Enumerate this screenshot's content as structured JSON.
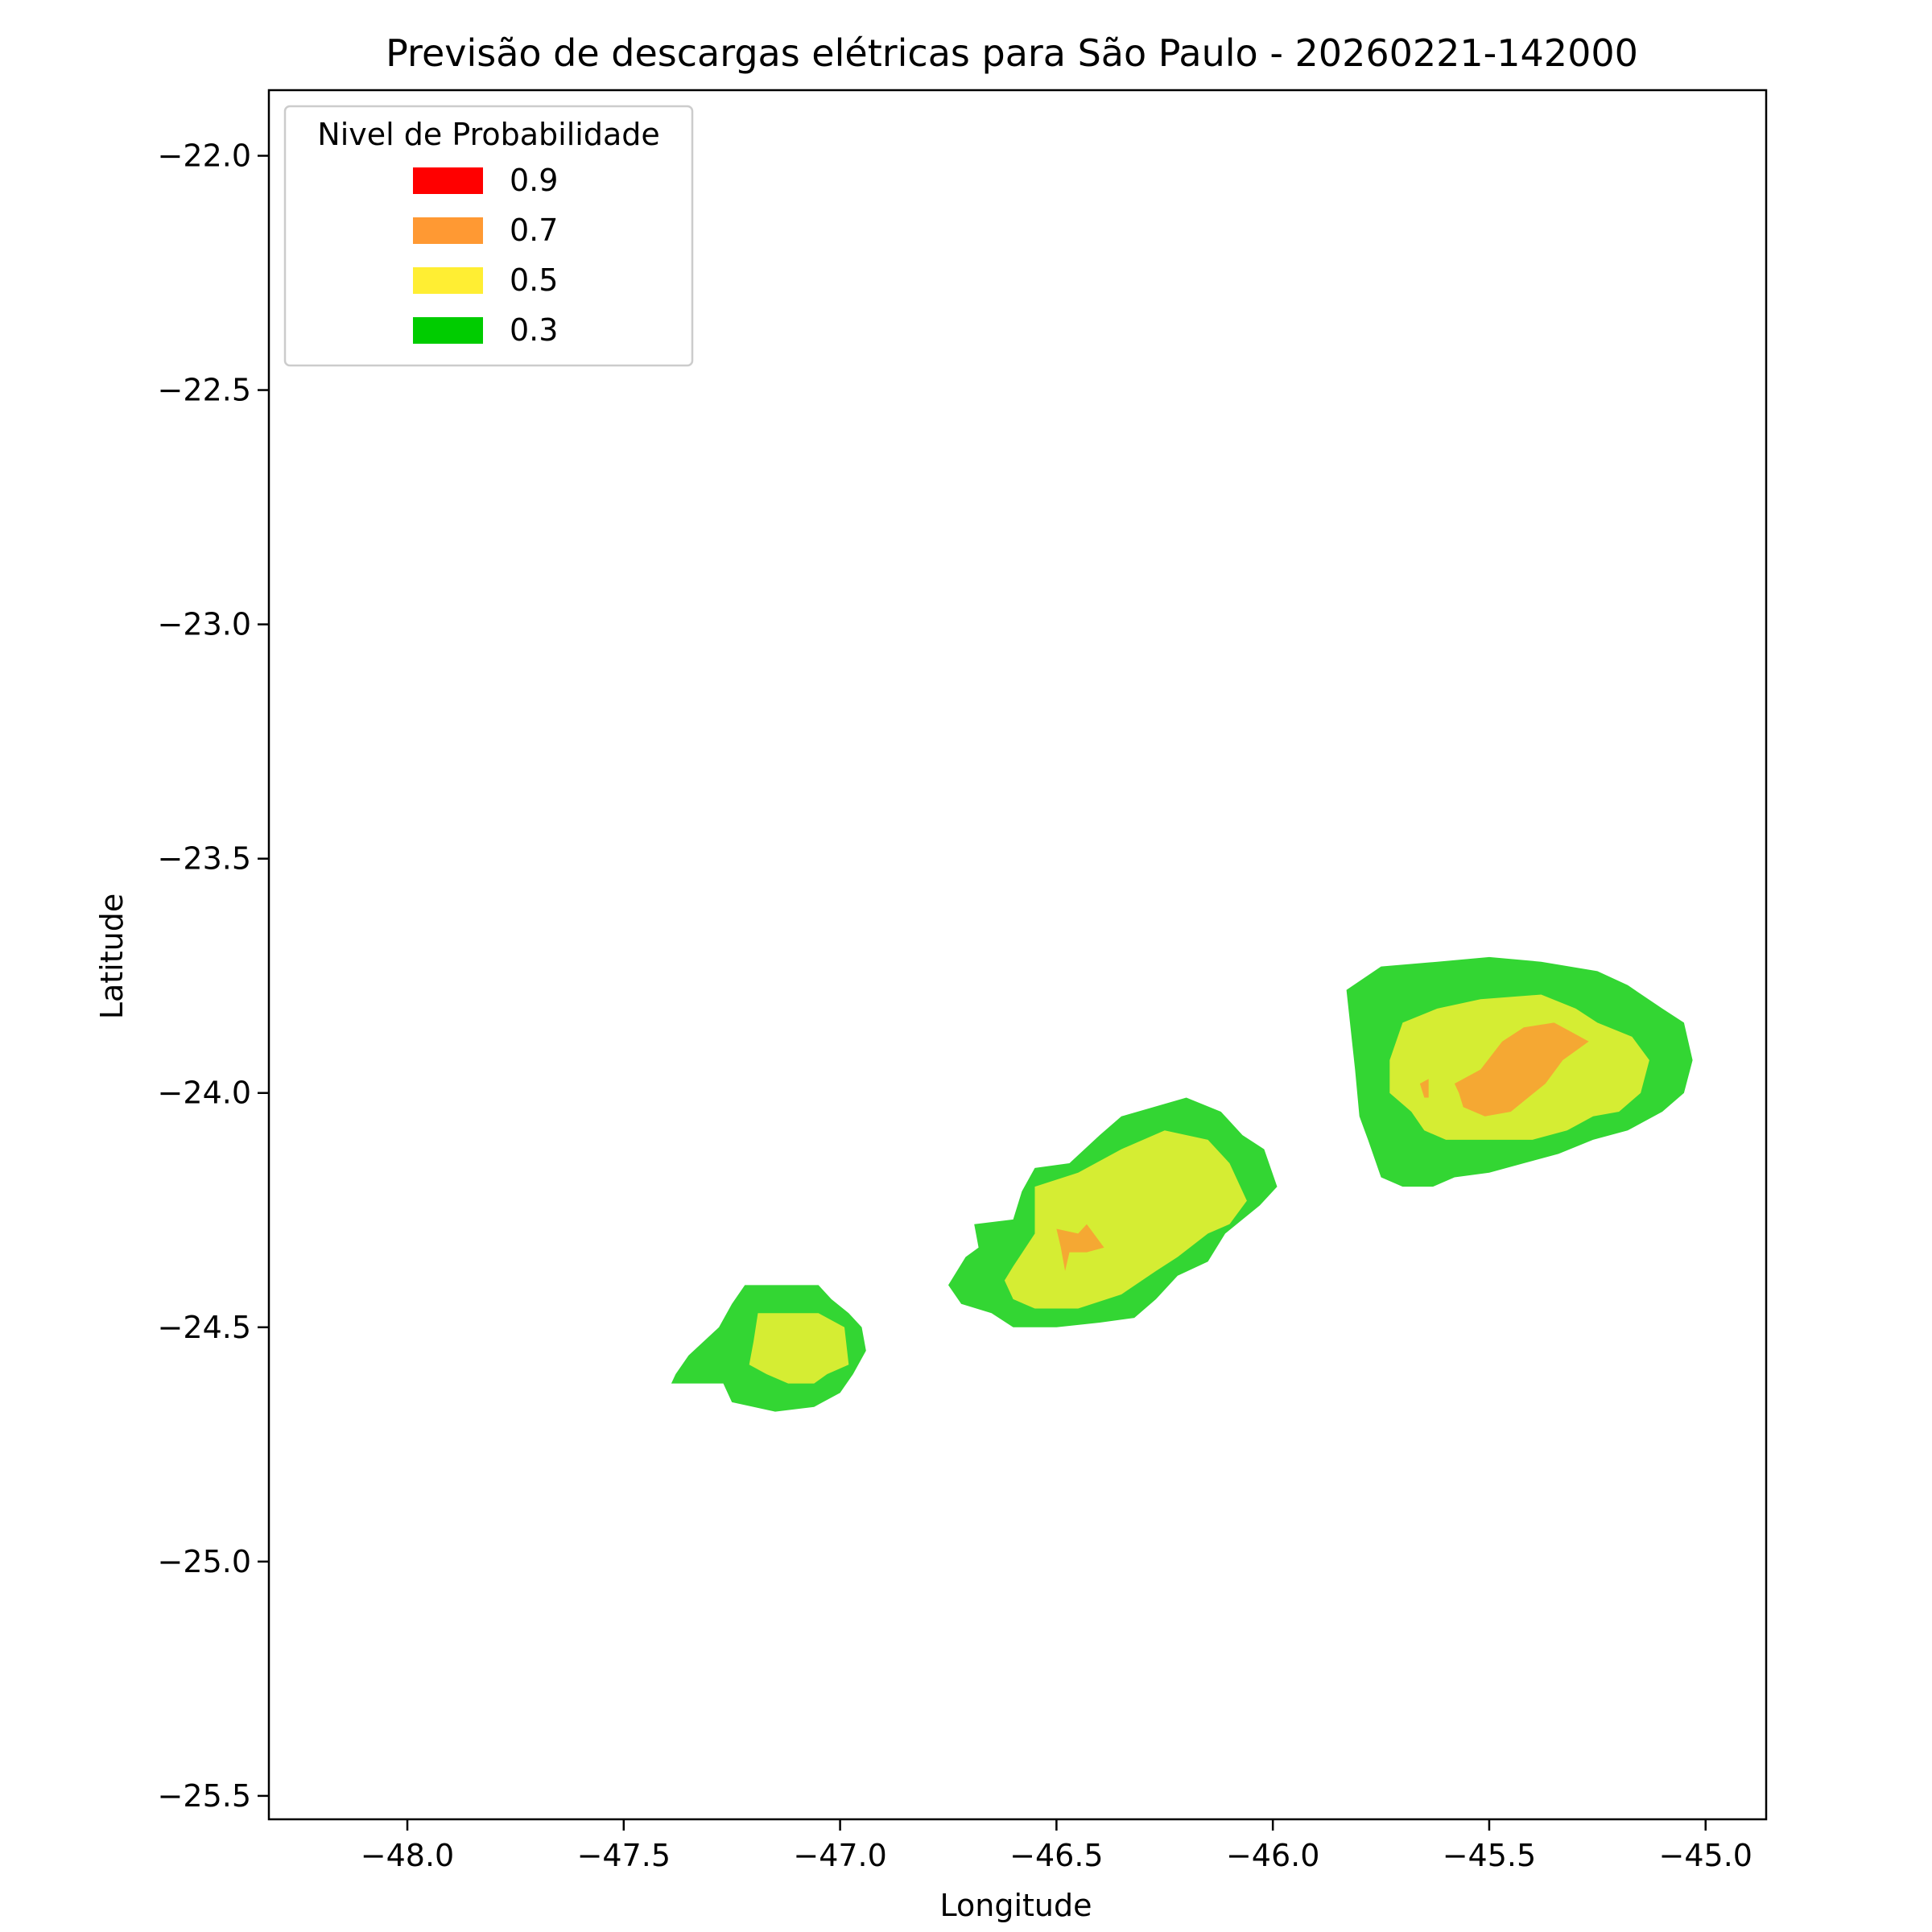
{
  "chart_data": {
    "type": "heatmap",
    "title": "Previsão de descargas elétricas para São Paulo - 20260221-142000",
    "xlabel": "Longitude",
    "ylabel": "Latitude",
    "xlim": [
      -48.32,
      -44.86
    ],
    "ylim": [
      -25.55,
      -21.86
    ],
    "xticks": [
      -48.0,
      -47.5,
      -47.0,
      -46.5,
      -46.0,
      -45.5,
      -45.0
    ],
    "xtick_labels": [
      "−48.0",
      "−47.5",
      "−47.0",
      "−46.5",
      "−46.0",
      "−45.5",
      "−45.0"
    ],
    "yticks": [
      -22.0,
      -22.5,
      -23.0,
      -23.5,
      -24.0,
      -24.5,
      -25.0,
      -25.5
    ],
    "ytick_labels": [
      "−22.0",
      "−22.5",
      "−23.0",
      "−23.5",
      "−24.0",
      "−24.5",
      "−25.0",
      "−25.5"
    ],
    "grid": false,
    "legend": {
      "title": "Nivel de Probabilidade",
      "placement": "top-left",
      "entries": [
        {
          "label": "0.9",
          "color": "#ff0000"
        },
        {
          "label": "0.7",
          "color": "#ff9933"
        },
        {
          "label": "0.5",
          "color": "#ffee33"
        },
        {
          "label": "0.3",
          "color": "#00cc00"
        }
      ]
    },
    "regions": [
      {
        "level": 0.3,
        "color": "#33d633",
        "points": [
          [
            -47.38,
            -24.6
          ],
          [
            -47.35,
            -24.56
          ],
          [
            -47.28,
            -24.5
          ],
          [
            -47.25,
            -24.45
          ],
          [
            -47.22,
            -24.41
          ],
          [
            -47.05,
            -24.41
          ],
          [
            -47.02,
            -24.44
          ],
          [
            -46.98,
            -24.47
          ],
          [
            -46.95,
            -24.5
          ],
          [
            -46.94,
            -24.55
          ],
          [
            -46.97,
            -24.6
          ],
          [
            -47.0,
            -24.64
          ],
          [
            -47.06,
            -24.67
          ],
          [
            -47.15,
            -24.68
          ],
          [
            -47.25,
            -24.66
          ],
          [
            -47.27,
            -24.62
          ],
          [
            -47.39,
            -24.62
          ]
        ]
      },
      {
        "level": 0.5,
        "color": "#d5ed33",
        "points": [
          [
            -47.2,
            -24.53
          ],
          [
            -47.19,
            -24.47
          ],
          [
            -47.05,
            -24.47
          ],
          [
            -46.99,
            -24.5
          ],
          [
            -46.98,
            -24.58
          ],
          [
            -47.03,
            -24.6
          ],
          [
            -47.06,
            -24.62
          ],
          [
            -47.12,
            -24.62
          ],
          [
            -47.17,
            -24.6
          ],
          [
            -47.21,
            -24.58
          ]
        ]
      },
      {
        "level": 0.3,
        "color": "#33d633",
        "points": [
          [
            -46.75,
            -24.41
          ],
          [
            -46.71,
            -24.35
          ],
          [
            -46.68,
            -24.33
          ],
          [
            -46.69,
            -24.28
          ],
          [
            -46.6,
            -24.27
          ],
          [
            -46.58,
            -24.21
          ],
          [
            -46.55,
            -24.16
          ],
          [
            -46.47,
            -24.15
          ],
          [
            -46.4,
            -24.09
          ],
          [
            -46.35,
            -24.05
          ],
          [
            -46.2,
            -24.01
          ],
          [
            -46.12,
            -24.04
          ],
          [
            -46.07,
            -24.09
          ],
          [
            -46.02,
            -24.12
          ],
          [
            -45.99,
            -24.2
          ],
          [
            -46.03,
            -24.24
          ],
          [
            -46.07,
            -24.27
          ],
          [
            -46.11,
            -24.3
          ],
          [
            -46.15,
            -24.36
          ],
          [
            -46.22,
            -24.39
          ],
          [
            -46.27,
            -24.44
          ],
          [
            -46.32,
            -24.48
          ],
          [
            -46.4,
            -24.49
          ],
          [
            -46.5,
            -24.5
          ],
          [
            -46.6,
            -24.5
          ],
          [
            -46.65,
            -24.47
          ],
          [
            -46.72,
            -24.45
          ]
        ]
      },
      {
        "level": 0.5,
        "color": "#d5ed33",
        "points": [
          [
            -46.6,
            -24.37
          ],
          [
            -46.55,
            -24.3
          ],
          [
            -46.55,
            -24.2
          ],
          [
            -46.45,
            -24.17
          ],
          [
            -46.35,
            -24.12
          ],
          [
            -46.25,
            -24.08
          ],
          [
            -46.15,
            -24.1
          ],
          [
            -46.1,
            -24.15
          ],
          [
            -46.06,
            -24.23
          ],
          [
            -46.1,
            -24.28
          ],
          [
            -46.15,
            -24.3
          ],
          [
            -46.22,
            -24.35
          ],
          [
            -46.27,
            -24.38
          ],
          [
            -46.35,
            -24.43
          ],
          [
            -46.45,
            -24.46
          ],
          [
            -46.55,
            -24.46
          ],
          [
            -46.6,
            -24.44
          ],
          [
            -46.62,
            -24.4
          ]
        ]
      },
      {
        "level": 0.7,
        "color": "#f5a833",
        "points": [
          [
            -46.5,
            -24.29
          ],
          [
            -46.45,
            -24.3
          ],
          [
            -46.43,
            -24.28
          ],
          [
            -46.39,
            -24.33
          ],
          [
            -46.43,
            -24.34
          ],
          [
            -46.47,
            -24.34
          ],
          [
            -46.48,
            -24.38
          ],
          [
            -46.49,
            -24.33
          ]
        ]
      },
      {
        "level": 0.3,
        "color": "#33d633",
        "points": [
          [
            -45.83,
            -23.78
          ],
          [
            -45.75,
            -23.73
          ],
          [
            -45.62,
            -23.72
          ],
          [
            -45.5,
            -23.71
          ],
          [
            -45.38,
            -23.72
          ],
          [
            -45.25,
            -23.74
          ],
          [
            -45.18,
            -23.77
          ],
          [
            -45.1,
            -23.82
          ],
          [
            -45.05,
            -23.85
          ],
          [
            -45.03,
            -23.93
          ],
          [
            -45.05,
            -24.0
          ],
          [
            -45.1,
            -24.04
          ],
          [
            -45.18,
            -24.08
          ],
          [
            -45.26,
            -24.1
          ],
          [
            -45.34,
            -24.13
          ],
          [
            -45.42,
            -24.15
          ],
          [
            -45.5,
            -24.17
          ],
          [
            -45.58,
            -24.18
          ],
          [
            -45.63,
            -24.2
          ],
          [
            -45.7,
            -24.2
          ],
          [
            -45.75,
            -24.18
          ],
          [
            -45.78,
            -24.1
          ],
          [
            -45.8,
            -24.05
          ],
          [
            -45.81,
            -23.95
          ]
        ]
      },
      {
        "level": 0.5,
        "color": "#d5ed33",
        "points": [
          [
            -45.73,
            -23.93
          ],
          [
            -45.7,
            -23.85
          ],
          [
            -45.62,
            -23.82
          ],
          [
            -45.52,
            -23.8
          ],
          [
            -45.38,
            -23.79
          ],
          [
            -45.3,
            -23.82
          ],
          [
            -45.25,
            -23.85
          ],
          [
            -45.17,
            -23.88
          ],
          [
            -45.13,
            -23.93
          ],
          [
            -45.15,
            -24.0
          ],
          [
            -45.2,
            -24.04
          ],
          [
            -45.26,
            -24.05
          ],
          [
            -45.32,
            -24.08
          ],
          [
            -45.4,
            -24.1
          ],
          [
            -45.5,
            -24.1
          ],
          [
            -45.6,
            -24.1
          ],
          [
            -45.65,
            -24.08
          ],
          [
            -45.68,
            -24.04
          ],
          [
            -45.73,
            -24.0
          ]
        ]
      },
      {
        "level": 0.7,
        "color": "#f5a833",
        "points": [
          [
            -45.58,
            -23.98
          ],
          [
            -45.52,
            -23.95
          ],
          [
            -45.47,
            -23.89
          ],
          [
            -45.42,
            -23.86
          ],
          [
            -45.35,
            -23.85
          ],
          [
            -45.31,
            -23.87
          ],
          [
            -45.27,
            -23.89
          ],
          [
            -45.33,
            -23.93
          ],
          [
            -45.37,
            -23.98
          ],
          [
            -45.41,
            -24.01
          ],
          [
            -45.45,
            -24.04
          ],
          [
            -45.51,
            -24.05
          ],
          [
            -45.56,
            -24.03
          ],
          [
            -45.57,
            -24.0
          ]
        ]
      },
      {
        "level": 0.7,
        "color": "#f5a833",
        "points": [
          [
            -45.66,
            -23.98
          ],
          [
            -45.64,
            -23.97
          ],
          [
            -45.64,
            -24.01
          ],
          [
            -45.65,
            -24.01
          ]
        ]
      }
    ]
  }
}
